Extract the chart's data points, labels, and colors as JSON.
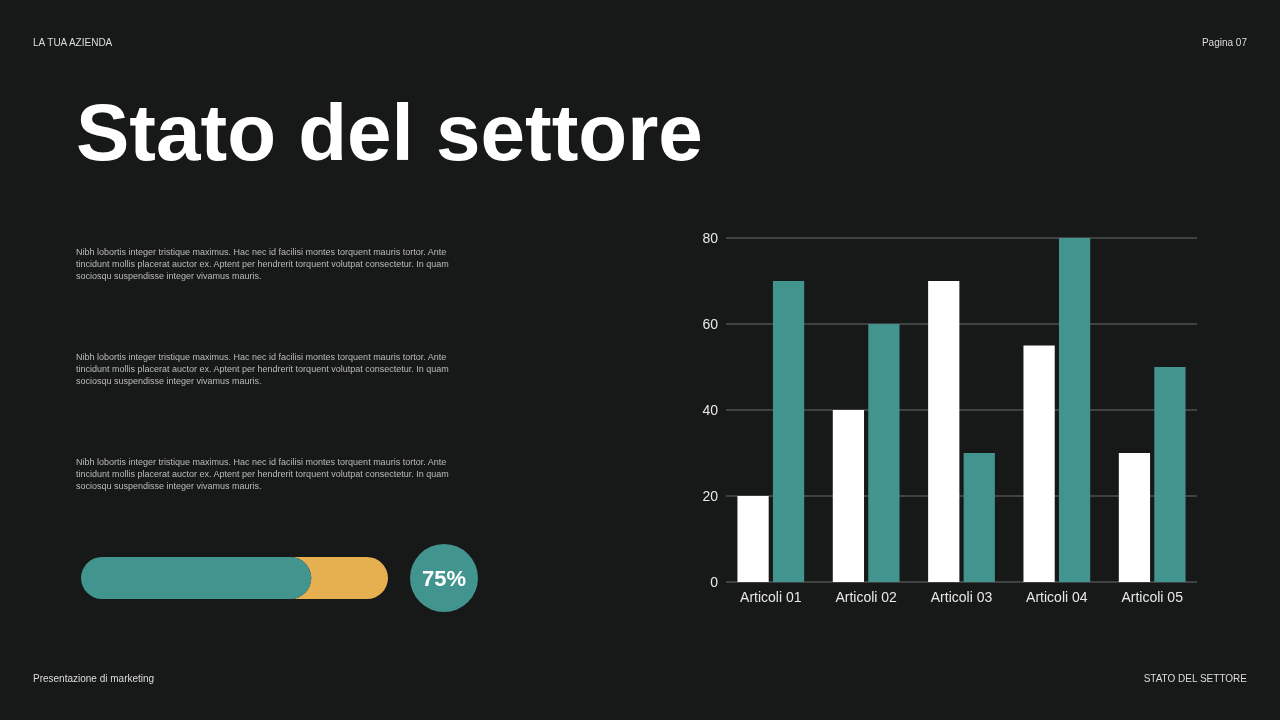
{
  "chart_data": [
    {
      "type": "bar",
      "title": "Stato del settore",
      "categories": [
        "Articoli 01",
        "Articoli 02",
        "Articoli 03",
        "Articoli 04",
        "Articoli 05"
      ],
      "series": [
        {
          "color": "#ffffff",
          "values": [
            20,
            40,
            70,
            55,
            30
          ]
        },
        {
          "color": "#42958f",
          "values": [
            70,
            60,
            30,
            80,
            50
          ]
        }
      ],
      "ylim": [
        0,
        80
      ],
      "yticks": [
        0,
        20,
        40,
        60,
        80
      ],
      "grid": "y",
      "annotations": [
        "LA TUA AZIENDA",
        "Pagina 07",
        "Nibh lobortis integer tristique maximus. Hac nec id facilisi montes torquent mauris tortor. Ante tincidunt mollis placerat auctor ex. Aptent per hendrerit torquent volutpat consectetur. In quam sociosqu suspendisse integer vivamus mauris.",
        "Nibh lobortis integer tristique maximus. Hac nec id facilisi montes torquent mauris tortor. Ante tincidunt mollis placerat auctor ex. Aptent per hendrerit torquent volutpat consectetur. In quam sociosqu suspendisse integer vivamus mauris.",
        "Nibh lobortis integer tristique maximus. Hac nec id facilisi montes torquent mauris tortor. Ante tincidunt mollis placerat auctor ex. Aptent per hendrerit torquent volutpat consectetur. In quam sociosqu suspendisse integer vivamus mauris.",
        "Presentazione di marketing",
        "STATO DEL SETTORE"
      ]
    },
    {
      "type": "other",
      "categories": [
        null
      ],
      "series": [
        {
          "color": "#42958f",
          "values": [
            75
          ],
          "value_labels": [
            "75%"
          ]
        }
      ]
    }
  ]
}
